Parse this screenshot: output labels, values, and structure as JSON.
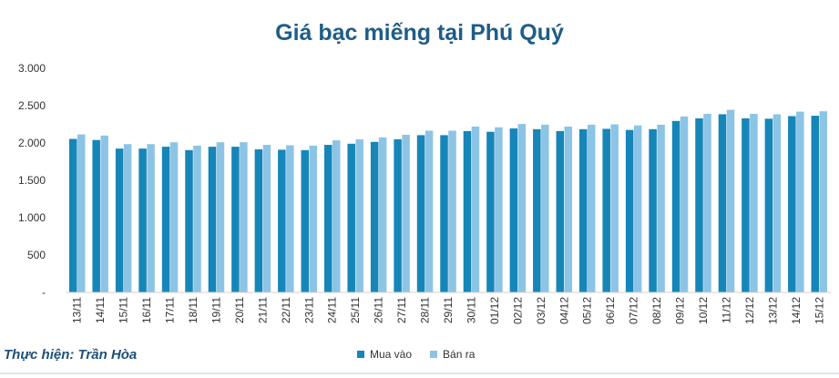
{
  "chart_data": {
    "type": "bar",
    "title": "Giá bạc miếng tại Phú Quý",
    "ylim": [
      0,
      3000
    ],
    "yticks": [
      0,
      500,
      1000,
      1500,
      2000,
      2500,
      3000
    ],
    "ytick_labels": [
      "-",
      "500",
      "1.000",
      "1.500",
      "2.000",
      "2.500",
      "3.000"
    ],
    "grid": false,
    "legend_position": "bottom",
    "categories": [
      "13/11",
      "14/11",
      "15/11",
      "16/11",
      "17/11",
      "18/11",
      "19/11",
      "20/11",
      "21/11",
      "22/11",
      "23/11",
      "24/11",
      "25/11",
      "26/11",
      "27/11",
      "28/11",
      "29/11",
      "30/11",
      "01/12",
      "02/12",
      "03/12",
      "04/12",
      "05/12",
      "06/12",
      "07/12",
      "08/12",
      "09/12",
      "10/12",
      "11/12",
      "12/12",
      "13/12",
      "14/12",
      "15/12"
    ],
    "series": [
      {
        "name": "Mua vào",
        "color": "#1686b8",
        "values": [
          2055,
          2040,
          1925,
          1925,
          1950,
          1905,
          1950,
          1950,
          1915,
          1910,
          1905,
          1975,
          1990,
          2015,
          2050,
          2105,
          2105,
          2160,
          2150,
          2195,
          2185,
          2160,
          2185,
          2190,
          2175,
          2185,
          2295,
          2330,
          2385,
          2330,
          2325,
          2360,
          2365
        ]
      },
      {
        "name": "Bán ra",
        "color": "#8cc4e6",
        "values": [
          2115,
          2100,
          1985,
          1985,
          2010,
          1965,
          2010,
          2010,
          1975,
          1970,
          1965,
          2035,
          2050,
          2075,
          2110,
          2165,
          2165,
          2220,
          2210,
          2255,
          2245,
          2220,
          2245,
          2250,
          2235,
          2245,
          2355,
          2390,
          2445,
          2390,
          2385,
          2420,
          2425
        ]
      }
    ]
  },
  "title_color": "#1f5d86",
  "credit": "Thực hiện: Trần Hòa",
  "credit_color": "#1f4f78"
}
